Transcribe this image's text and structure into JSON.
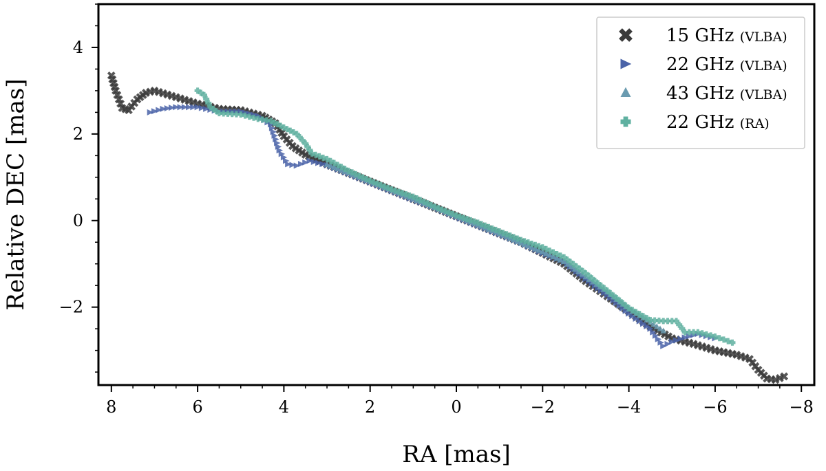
{
  "chart_data": {
    "type": "scatter",
    "title": "",
    "xlabel": "RA [mas]",
    "ylabel": "Relative DEC [mas]",
    "xlim": [
      8.3,
      -8.3
    ],
    "ylim": [
      -3.8,
      5.0
    ],
    "x_ticks": [
      8,
      6,
      4,
      2,
      0,
      -2,
      -4,
      -6,
      -8
    ],
    "x_tick_labels": [
      "8",
      "6",
      "4",
      "2",
      "0",
      "−2",
      "−4",
      "−6",
      "−8"
    ],
    "y_ticks": [
      4,
      2,
      0,
      -2
    ],
    "y_tick_labels": [
      "4",
      "2",
      "0",
      "−2"
    ],
    "legend_position": "top-right",
    "series": [
      {
        "name": "15 GHz",
        "tag": "(VLBA)",
        "marker": "x",
        "color": "#3a3a3a",
        "points": [
          [
            8.0,
            3.35
          ],
          [
            7.9,
            3.0
          ],
          [
            7.75,
            2.6
          ],
          [
            7.6,
            2.55
          ],
          [
            7.4,
            2.8
          ],
          [
            7.2,
            2.95
          ],
          [
            7.0,
            3.0
          ],
          [
            6.5,
            2.85
          ],
          [
            6.0,
            2.7
          ],
          [
            5.5,
            2.58
          ],
          [
            5.0,
            2.55
          ],
          [
            4.5,
            2.42
          ],
          [
            4.2,
            2.25
          ],
          [
            4.0,
            1.95
          ],
          [
            3.8,
            1.72
          ],
          [
            3.5,
            1.52
          ],
          [
            3.0,
            1.3
          ],
          [
            2.5,
            1.1
          ],
          [
            2.0,
            0.9
          ],
          [
            1.5,
            0.7
          ],
          [
            1.0,
            0.5
          ],
          [
            0.5,
            0.3
          ],
          [
            0.0,
            0.1
          ],
          [
            -0.5,
            -0.1
          ],
          [
            -1.0,
            -0.3
          ],
          [
            -1.5,
            -0.5
          ],
          [
            -2.0,
            -0.75
          ],
          [
            -2.5,
            -1.0
          ],
          [
            -3.0,
            -1.4
          ],
          [
            -3.5,
            -1.75
          ],
          [
            -4.0,
            -2.1
          ],
          [
            -4.5,
            -2.45
          ],
          [
            -5.0,
            -2.72
          ],
          [
            -5.5,
            -2.85
          ],
          [
            -6.0,
            -3.0
          ],
          [
            -6.5,
            -3.1
          ],
          [
            -6.8,
            -3.2
          ],
          [
            -7.0,
            -3.45
          ],
          [
            -7.2,
            -3.65
          ],
          [
            -7.4,
            -3.68
          ],
          [
            -7.6,
            -3.6
          ]
        ]
      },
      {
        "name": "22 GHz",
        "tag": "(VLBA)",
        "marker": "triangle-right",
        "color": "#4a63a8",
        "points": [
          [
            7.1,
            2.5
          ],
          [
            6.8,
            2.58
          ],
          [
            6.5,
            2.62
          ],
          [
            6.0,
            2.62
          ],
          [
            5.5,
            2.52
          ],
          [
            5.0,
            2.52
          ],
          [
            4.6,
            2.42
          ],
          [
            4.3,
            2.22
          ],
          [
            4.1,
            1.62
          ],
          [
            3.9,
            1.3
          ],
          [
            3.7,
            1.27
          ],
          [
            3.4,
            1.38
          ],
          [
            3.0,
            1.28
          ],
          [
            2.5,
            1.08
          ],
          [
            2.0,
            0.88
          ],
          [
            1.5,
            0.68
          ],
          [
            1.0,
            0.48
          ],
          [
            0.5,
            0.3
          ],
          [
            0.0,
            0.08
          ],
          [
            -0.5,
            -0.12
          ],
          [
            -1.0,
            -0.32
          ],
          [
            -1.5,
            -0.52
          ],
          [
            -2.0,
            -0.75
          ],
          [
            -2.5,
            -0.95
          ],
          [
            -3.0,
            -1.35
          ],
          [
            -3.5,
            -1.72
          ],
          [
            -4.0,
            -2.15
          ],
          [
            -4.5,
            -2.5
          ],
          [
            -4.8,
            -2.9
          ],
          [
            -5.0,
            -2.8
          ],
          [
            -5.3,
            -2.7
          ],
          [
            -5.6,
            -2.62
          ],
          [
            -6.0,
            -2.72
          ]
        ]
      },
      {
        "name": "43 GHz",
        "tag": "(VLBA)",
        "marker": "triangle-up",
        "color": "#6a9bb0",
        "points": [
          [
            3.0,
            1.3
          ],
          [
            2.5,
            1.1
          ],
          [
            2.0,
            0.9
          ],
          [
            1.5,
            0.7
          ],
          [
            1.0,
            0.5
          ],
          [
            0.5,
            0.3
          ],
          [
            0.0,
            0.1
          ],
          [
            -0.5,
            -0.1
          ],
          [
            -1.0,
            -0.3
          ],
          [
            -1.5,
            -0.52
          ],
          [
            -2.0,
            -0.72
          ],
          [
            -2.5,
            -0.95
          ],
          [
            -3.0,
            -1.3
          ],
          [
            -3.5,
            -1.65
          ],
          [
            -4.0,
            -2.05
          ],
          [
            -4.5,
            -2.35
          ],
          [
            -4.8,
            -2.55
          ]
        ]
      },
      {
        "name": "22 GHz",
        "tag": "(RA)",
        "marker": "plus",
        "color": "#5fb0a0",
        "points": [
          [
            6.0,
            3.0
          ],
          [
            5.85,
            2.9
          ],
          [
            5.7,
            2.62
          ],
          [
            5.5,
            2.48
          ],
          [
            5.0,
            2.45
          ],
          [
            4.6,
            2.35
          ],
          [
            4.3,
            2.3
          ],
          [
            4.0,
            2.15
          ],
          [
            3.7,
            2.0
          ],
          [
            3.5,
            1.78
          ],
          [
            3.35,
            1.55
          ],
          [
            3.0,
            1.42
          ],
          [
            2.5,
            1.15
          ],
          [
            2.0,
            0.92
          ],
          [
            1.5,
            0.72
          ],
          [
            1.0,
            0.55
          ],
          [
            0.5,
            0.32
          ],
          [
            0.0,
            0.12
          ],
          [
            -0.5,
            -0.05
          ],
          [
            -1.0,
            -0.25
          ],
          [
            -1.5,
            -0.45
          ],
          [
            -2.0,
            -0.62
          ],
          [
            -2.5,
            -0.85
          ],
          [
            -3.0,
            -1.22
          ],
          [
            -3.5,
            -1.62
          ],
          [
            -4.0,
            -2.02
          ],
          [
            -4.5,
            -2.3
          ],
          [
            -4.8,
            -2.32
          ],
          [
            -5.1,
            -2.32
          ],
          [
            -5.3,
            -2.58
          ],
          [
            -5.6,
            -2.58
          ],
          [
            -6.0,
            -2.68
          ],
          [
            -6.4,
            -2.82
          ]
        ]
      }
    ]
  }
}
